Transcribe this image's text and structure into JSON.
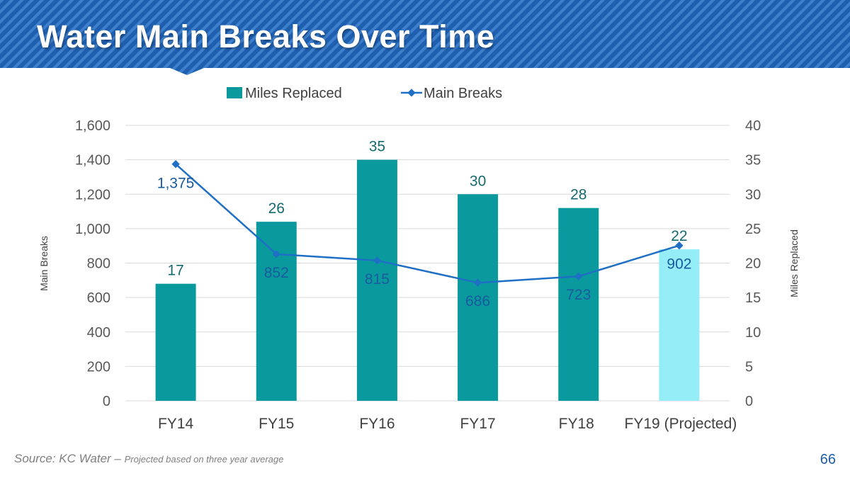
{
  "slide": {
    "title": "Water Main Breaks Over Time",
    "source_label": "Source: KC Water – ",
    "source_note": "Projected based on three year average",
    "page_number": "66"
  },
  "colors": {
    "header_blue": "#1e5fb0",
    "header_stripe": "#3f80cc",
    "bar": "#0a9a9e",
    "bar_projected": "#95eef7",
    "line": "#1f6fc5",
    "bar_label": "#156a70",
    "line_label": "#1a5a9e"
  },
  "chart_data": {
    "type": "bar+line",
    "categories": [
      "FY14",
      "FY15",
      "FY16",
      "FY17",
      "FY18",
      "FY19 (Projected)"
    ],
    "series": [
      {
        "name": "Miles Replaced",
        "type": "bar",
        "axis": "right",
        "values": [
          17,
          26,
          35,
          30,
          28,
          22
        ],
        "value_labels": [
          "17",
          "26",
          "35",
          "30",
          "28",
          "22"
        ],
        "projected_index": 5
      },
      {
        "name": "Main Breaks",
        "type": "line",
        "axis": "left",
        "values": [
          1375,
          852,
          815,
          686,
          723,
          902
        ],
        "value_labels": [
          "1,375",
          "852",
          "815",
          "686",
          "723",
          "902"
        ]
      }
    ],
    "left_axis": {
      "label": "Main Breaks",
      "min": 0,
      "max": 1600,
      "ticks": [
        "0",
        "200",
        "400",
        "600",
        "800",
        "1,000",
        "1,200",
        "1,400",
        "1,600"
      ]
    },
    "right_axis": {
      "label": "Miles Replaced",
      "min": 0,
      "max": 40,
      "ticks": [
        "0",
        "5",
        "10",
        "15",
        "20",
        "25",
        "30",
        "35",
        "40"
      ]
    },
    "legend": [
      "Miles Replaced",
      "Main Breaks"
    ],
    "legend_position": "top",
    "grid": true
  }
}
